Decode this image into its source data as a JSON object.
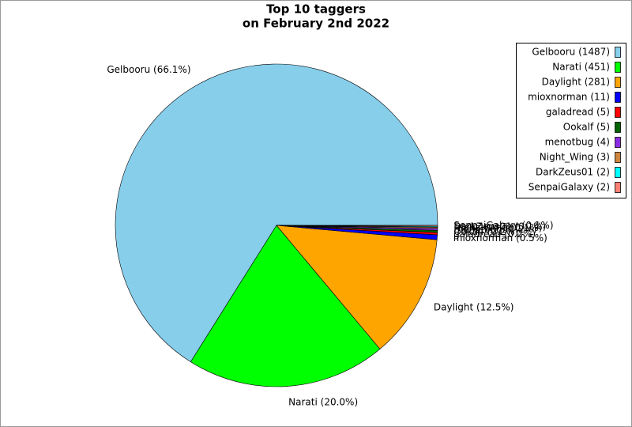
{
  "chart_data": {
    "type": "pie",
    "title": "Top 10 taggers",
    "subtitle": "on February 2nd 2022",
    "categories": [
      "Gelbooru",
      "Narati",
      "Daylight",
      "mioxnorman",
      "galadread",
      "Ookalf",
      "menotbug",
      "Night_Wing",
      "DarkZeus01",
      "SenpaiGalaxy"
    ],
    "values": [
      1487,
      451,
      281,
      11,
      5,
      5,
      4,
      3,
      2,
      2
    ],
    "legend_labels": [
      "Gelbooru (1487)",
      "Narati (451)",
      "Daylight (281)",
      "mioxnorman (11)",
      "galadread (5)",
      "Ookalf (5)",
      "menotbug (4)",
      "Night_Wing (3)",
      "DarkZeus01 (2)",
      "SenpaiGalaxy (2)"
    ],
    "slice_labels": [
      "Gelbooru (66.1%)",
      "Narati (20.0%)",
      "Daylight (12.5%)",
      "mioxnorman (0.5%)",
      "galadread (0.2%)",
      "Ookalf (0.2%)",
      "menotbug (0.2%)",
      "Night_Wing (0.1%)",
      "DarkZeus01 (0.1%)",
      "SenpaiGalaxy (0.1%)"
    ],
    "colors": [
      "#87ceeb",
      "#00ff00",
      "#ffa500",
      "#0000ff",
      "#ff0000",
      "#006400",
      "#8a2be2",
      "#cd853f",
      "#00ffff",
      "#fa8072"
    ],
    "legend": "upper right"
  }
}
